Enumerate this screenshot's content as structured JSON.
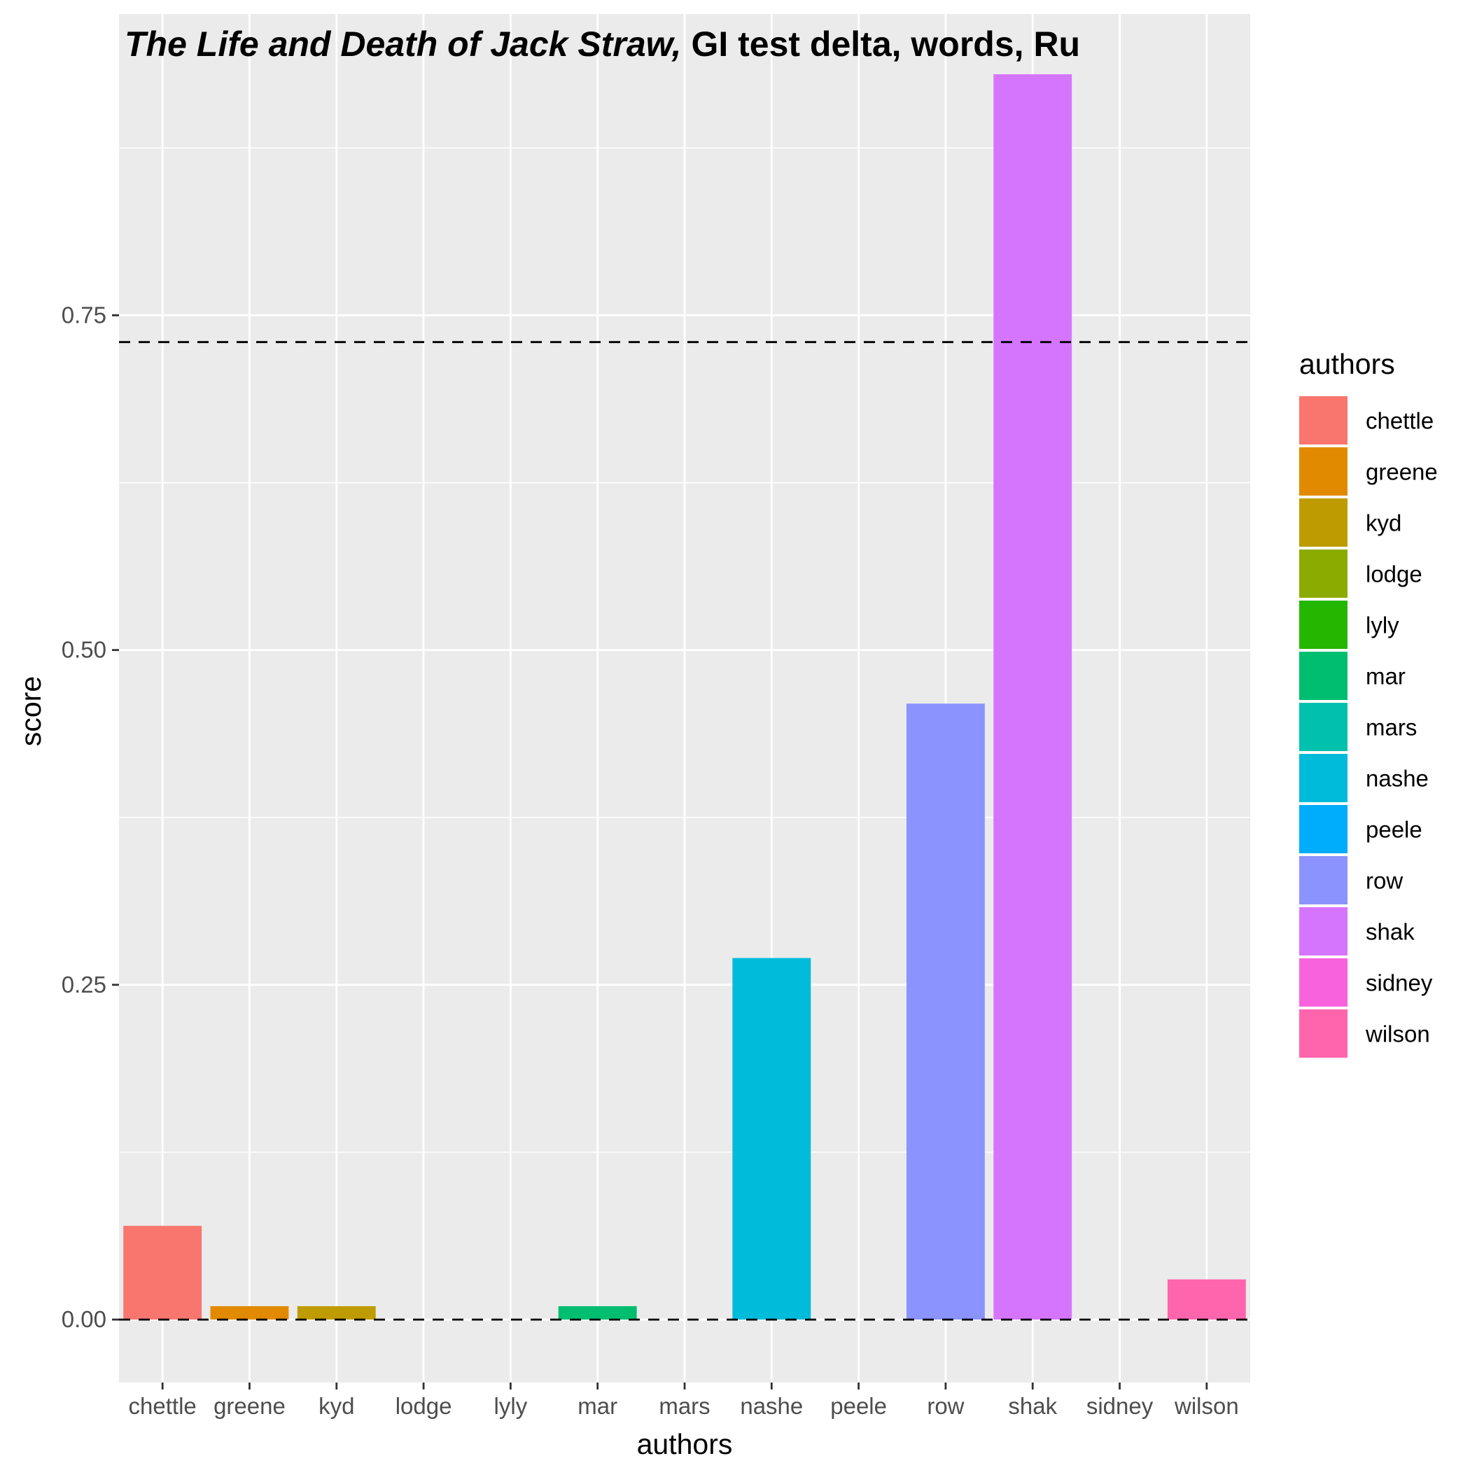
{
  "chart_data": {
    "type": "bar",
    "title_italic": "The Life and Death of Jack Straw,",
    "title_rest": " GI test delta, words, Ru",
    "xlabel": "authors",
    "ylabel": "score",
    "categories": [
      "chettle",
      "greene",
      "kyd",
      "lodge",
      "lyly",
      "mar",
      "mars",
      "nashe",
      "peele",
      "row",
      "shak",
      "sidney",
      "wilson"
    ],
    "values": [
      0.07,
      0.01,
      0.01,
      0,
      0,
      0.01,
      0,
      0.27,
      0,
      0.46,
      0.93,
      0,
      0.03
    ],
    "colors": [
      "#F8766D",
      "#E18A00",
      "#BE9C00",
      "#8CAB00",
      "#24B700",
      "#00BE70",
      "#00C1AB",
      "#00BBDA",
      "#00ACFC",
      "#8B93FF",
      "#D575FE",
      "#F962DD",
      "#FF65AC"
    ],
    "ylim": [
      -0.047,
      0.975
    ],
    "yticks": [
      0,
      0.25,
      0.5,
      0.75
    ],
    "ytick_labels": [
      "0.00",
      "0.25",
      "0.50",
      "0.75"
    ],
    "reference_lines": [
      0.73,
      0
    ],
    "grid": true,
    "legend": {
      "title": "authors",
      "position": "right"
    }
  }
}
